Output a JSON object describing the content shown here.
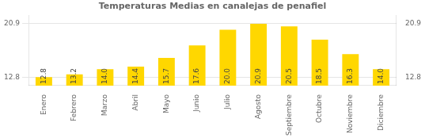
{
  "chart_data": {
    "type": "bar",
    "title": "Temperaturas Medias en canalejas de penafiel",
    "categories": [
      "Enero",
      "Febrero",
      "Marzo",
      "Abril",
      "Mayo",
      "Junio",
      "Julio",
      "Agosto",
      "Septiembre",
      "Octubre",
      "Noviembre",
      "Diciembre"
    ],
    "values": [
      12.8,
      13.2,
      14.0,
      14.4,
      15.7,
      17.6,
      20.0,
      20.9,
      20.5,
      18.5,
      16.3,
      14.0
    ],
    "value_labels": [
      "12.8",
      "13.2",
      "14.0",
      "14.4",
      "15.7",
      "17.6",
      "20.0",
      "20.9",
      "20.5",
      "18.5",
      "16.3",
      "14.0"
    ],
    "data_labels": true,
    "color": "#FFD700",
    "ylim": [
      11.5,
      22.2
    ],
    "yticks": [
      12.8,
      20.9
    ],
    "y2lim": [
      11.5,
      22.2
    ],
    "y2ticks": [
      12.8,
      20.9
    ],
    "grid": true
  }
}
